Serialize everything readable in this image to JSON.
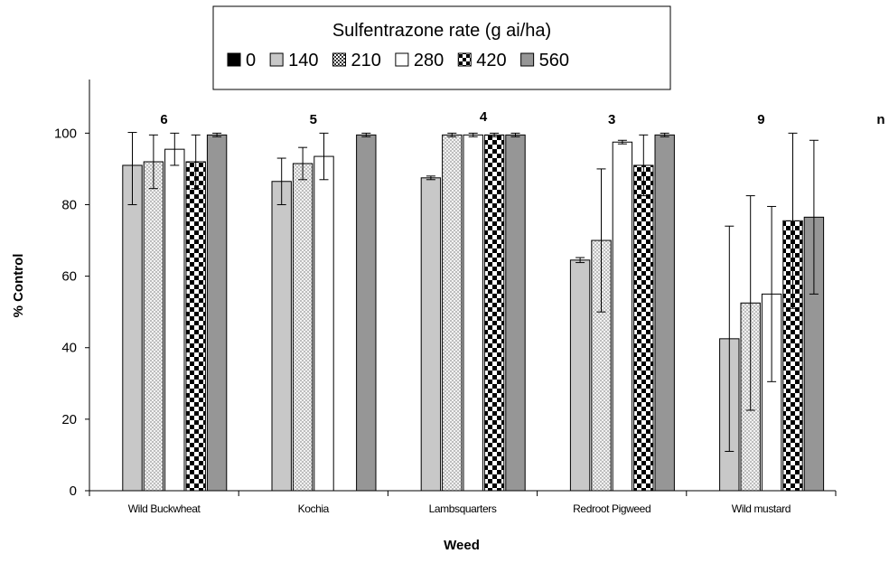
{
  "chart_data": {
    "type": "bar",
    "title": "",
    "xlabel": "Weed",
    "ylabel": "% Control",
    "ylim": [
      0,
      115
    ],
    "yticks": [
      0,
      20,
      40,
      60,
      80,
      100
    ],
    "grid": false,
    "legend": {
      "title": "Sulfentrazone rate (g ai/ha)",
      "placement": "top-center"
    },
    "categories": [
      "Wild Buckwheat",
      "Kochia",
      "Lambsquarters",
      "Redroot Pigweed",
      "Wild mustard"
    ],
    "n_header": "n",
    "n_values": [
      "6",
      "5",
      "4",
      "3",
      "9"
    ],
    "series": [
      {
        "name": "0",
        "fill": "#000000",
        "pattern": "solid",
        "values": [
          0,
          0,
          0,
          0,
          0
        ],
        "errors": [
          0,
          0,
          0,
          0,
          0
        ]
      },
      {
        "name": "140",
        "fill": "#c8c8c8",
        "pattern": "solid",
        "values": [
          91,
          86.5,
          87.5,
          64.5,
          42.5
        ],
        "errors": [
          11,
          6.5,
          0.5,
          0.7,
          31.5
        ]
      },
      {
        "name": "210",
        "fill": "#e6e6e6",
        "pattern": "dots",
        "values": [
          92,
          91.5,
          99.5,
          70,
          52.5
        ],
        "errors": [
          7.5,
          4.5,
          0.5,
          20,
          30
        ]
      },
      {
        "name": "280",
        "fill": "#ffffff",
        "pattern": "solid",
        "values": [
          95.5,
          93.5,
          99.5,
          97.5,
          55
        ],
        "errors": [
          4.5,
          6.5,
          0.5,
          0.5,
          24.5
        ]
      },
      {
        "name": "420",
        "fill": "#ffffff",
        "pattern": "checker",
        "values": [
          92,
          0,
          99.5,
          91,
          75.5
        ],
        "errors": [
          7.5,
          0,
          0.5,
          8.5,
          24.5
        ]
      },
      {
        "name": "560",
        "fill": "#969696",
        "pattern": "solid",
        "values": [
          99.5,
          99.5,
          99.5,
          99.5,
          76.5
        ],
        "errors": [
          0.5,
          0.5,
          0.5,
          0.5,
          21.5
        ]
      }
    ]
  }
}
